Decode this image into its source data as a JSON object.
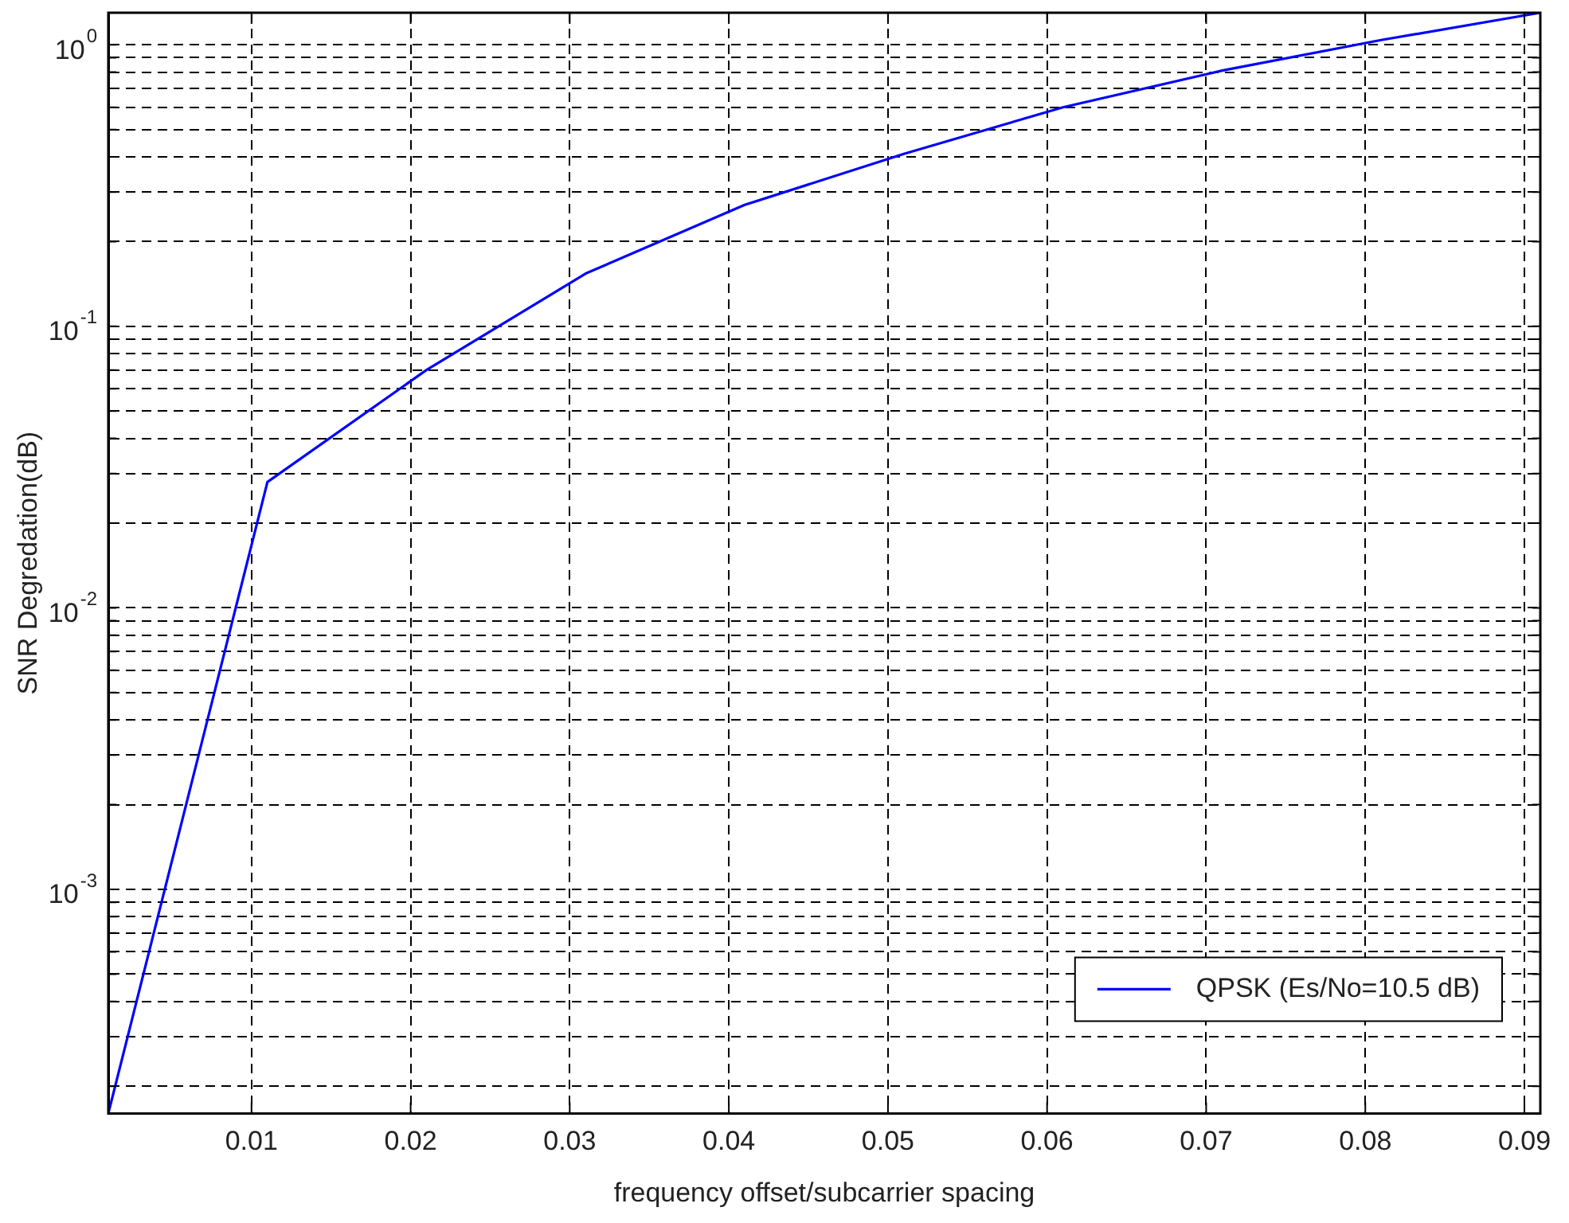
{
  "chart_data": {
    "type": "line",
    "xlabel": "frequency offset/subcarrier spacing",
    "ylabel": "SNR Degredation(dB)",
    "x": [
      0.001,
      0.011,
      0.021,
      0.031,
      0.041,
      0.051,
      0.061,
      0.071,
      0.081,
      0.091
    ],
    "series": [
      {
        "name": "QPSK (Es/No=10.5 dB)",
        "color": "#0000ff",
        "values": [
          0.00016,
          0.028,
          0.07,
          0.154,
          0.27,
          0.41,
          0.6,
          0.81,
          1.04,
          1.3
        ]
      }
    ],
    "xlim": [
      0.001,
      0.091
    ],
    "xticks": [
      0.01,
      0.02,
      0.03,
      0.04,
      0.05,
      0.06,
      0.07,
      0.08,
      0.09
    ],
    "ylim": [
      0.00016,
      1.3
    ],
    "log": true,
    "yticks": [
      {
        "value": 0.0002,
        "label": null
      },
      {
        "value": 0.0003,
        "label": null
      },
      {
        "value": 0.0004,
        "label": null
      },
      {
        "value": 0.0005,
        "label": null
      },
      {
        "value": 0.0006,
        "label": null
      },
      {
        "value": 0.0007,
        "label": null
      },
      {
        "value": 0.0008,
        "label": null
      },
      {
        "value": 0.0009,
        "label": null
      },
      {
        "value": 0.001,
        "label": "10$^{-3}$"
      },
      {
        "value": 0.002,
        "label": null
      },
      {
        "value": 0.003,
        "label": null
      },
      {
        "value": 0.004,
        "label": null
      },
      {
        "value": 0.005,
        "label": null
      },
      {
        "value": 0.006,
        "label": null
      },
      {
        "value": 0.007,
        "label": null
      },
      {
        "value": 0.008,
        "label": null
      },
      {
        "value": 0.009,
        "label": null
      },
      {
        "value": 0.01,
        "label": "10$^{-2}$"
      },
      {
        "value": 0.02,
        "label": null
      },
      {
        "value": 0.03,
        "label": null
      },
      {
        "value": 0.04,
        "label": null
      },
      {
        "value": 0.05,
        "label": null
      },
      {
        "value": 0.06,
        "label": null
      },
      {
        "value": 0.07,
        "label": null
      },
      {
        "value": 0.08,
        "label": null
      },
      {
        "value": 0.09,
        "label": null
      },
      {
        "value": 0.1,
        "label": "10$^{-1}$"
      },
      {
        "value": 0.2,
        "label": null
      },
      {
        "value": 0.3,
        "label": null
      },
      {
        "value": 0.4,
        "label": null
      },
      {
        "value": 0.5,
        "label": null
      },
      {
        "value": 0.6,
        "label": null
      },
      {
        "value": 0.7,
        "label": null
      },
      {
        "value": 0.8,
        "label": null
      },
      {
        "value": 0.9,
        "label": null
      },
      {
        "value": 1,
        "label": "10$^{0}$"
      }
    ],
    "grid": true,
    "legend": "bottom right",
    "marker": "none",
    "line_style": "solid"
  }
}
